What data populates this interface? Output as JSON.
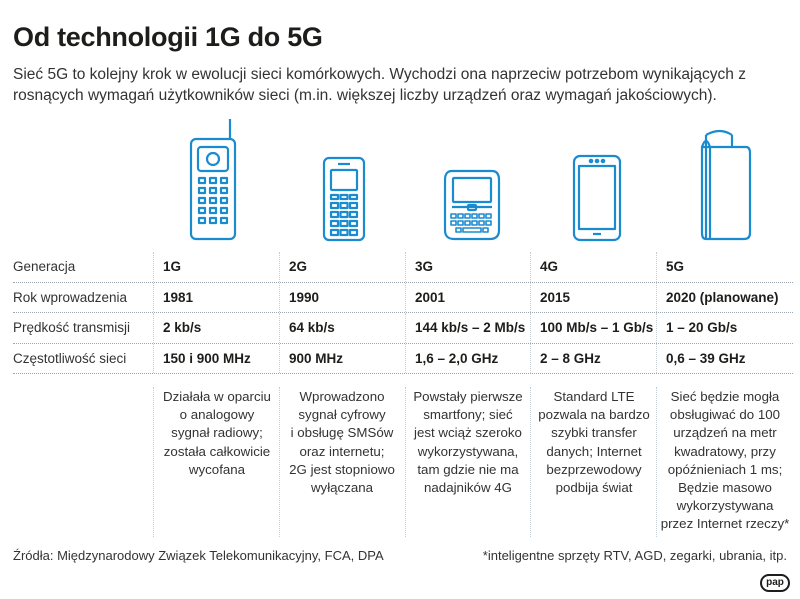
{
  "title": "Od technologii 1G do 5G",
  "subtitle": "Sieć 5G to kolejny krok w ewolucji sieci komórkowych. Wychodzi ona naprzeciw potrzebom wynikających z rosnących wymagań użytkowników sieci (m.in. większej liczby urządzeń oraz wymagań jakościowych).",
  "rows": [
    {
      "label": "Generacja",
      "values": [
        "1G",
        "2G",
        "3G",
        "4G",
        "5G"
      ]
    },
    {
      "label": "Rok wprowadzenia",
      "values": [
        "1981",
        "1990",
        "2001",
        "2015",
        "2020 (planowane)"
      ]
    },
    {
      "label": "Prędkość transmisji",
      "values": [
        "2 kb/s",
        "64 kb/s",
        "144 kb/s – 2 Mb/s",
        "100 Mb/s – 1 Gb/s",
        "1 – 20 Gb/s"
      ]
    },
    {
      "label": "Częstotliwość sieci",
      "values": [
        "150 i 900 MHz",
        "900 MHz",
        "1,6 – 2,0 GHz",
        "2 – 8 GHz",
        "0,6 – 39 GHz"
      ]
    }
  ],
  "descriptions": [
    "Działała w oparciu\no analogowy\nsygnał radiowy;\nzostała całkowicie\nwycofana",
    "Wprowadzono\nsygnał cyfrowy\ni obsługę SMSów\noraz internetu;\n2G jest stopniowo\nwyłączana",
    "Powstały pierwsze\nsmartfony; sieć\njest wciąż szeroko\nwykorzystywana,\ntam gdzie nie ma\nnadajników 4G",
    "Standard LTE\npozwala na bardzo\nszybki transfer\ndanych; Internet\nbezprzewodowy\npodbija świat",
    "Sieć będzie mogła\nobsługiwać do 100\nurządzeń na metr\nkwadratowy, przy\nopóźnieniach 1 ms;\nBędzie masowo\nwykorzystywana\nprzez Internet rzeczy*"
  ],
  "footer": {
    "sources": "Źródła: Międzynarodowy Związek Telekomunikacyjny, FCA, DPA",
    "note": "*inteligentne sprzęty RTV, AGD, zegarki, ubrania, itp.",
    "logo": "pap"
  },
  "colors": {
    "icon": "#1b8bd0",
    "text": "#1d1d1b",
    "divider": "#9aa7b0"
  }
}
